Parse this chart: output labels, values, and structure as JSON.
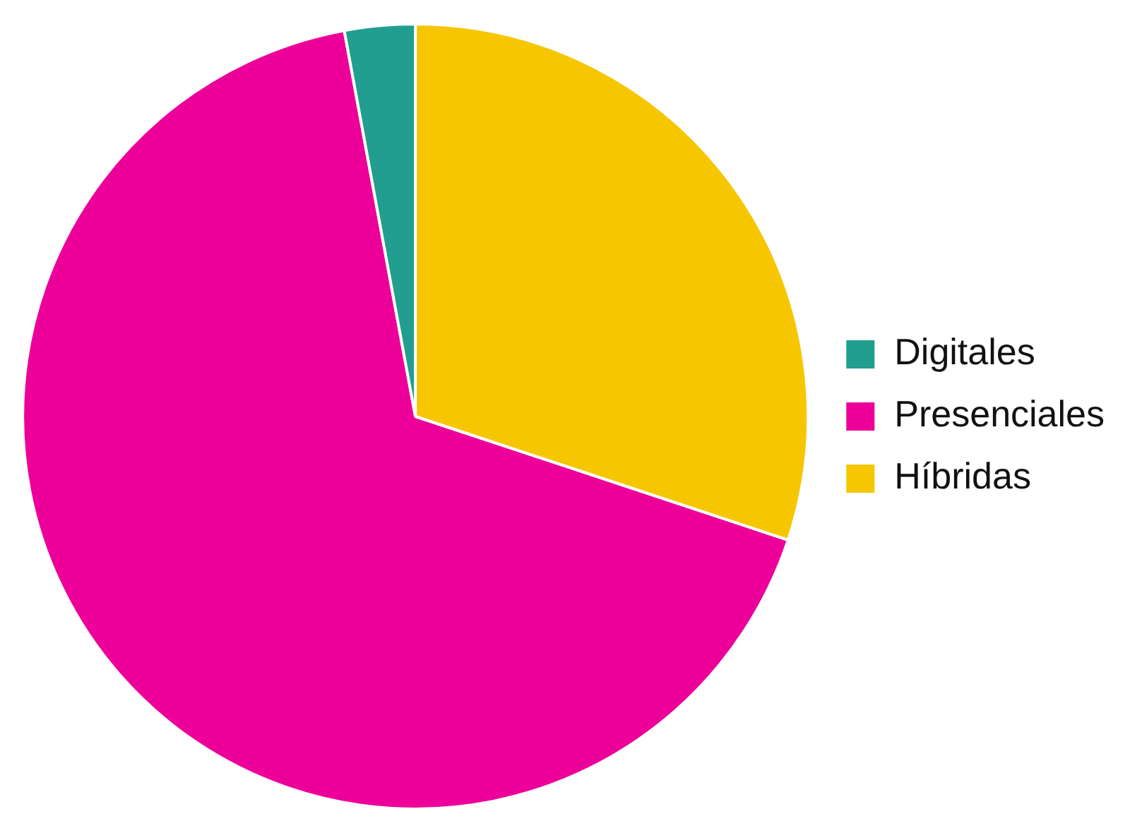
{
  "chart_data": {
    "type": "pie",
    "categories": [
      "Digitales",
      "Presenciales",
      "Híbridas"
    ],
    "values": [
      2.9,
      67.0,
      30.1
    ],
    "colors": [
      "#219e8f",
      "#ec0099",
      "#f6c600"
    ],
    "legend": "right"
  }
}
